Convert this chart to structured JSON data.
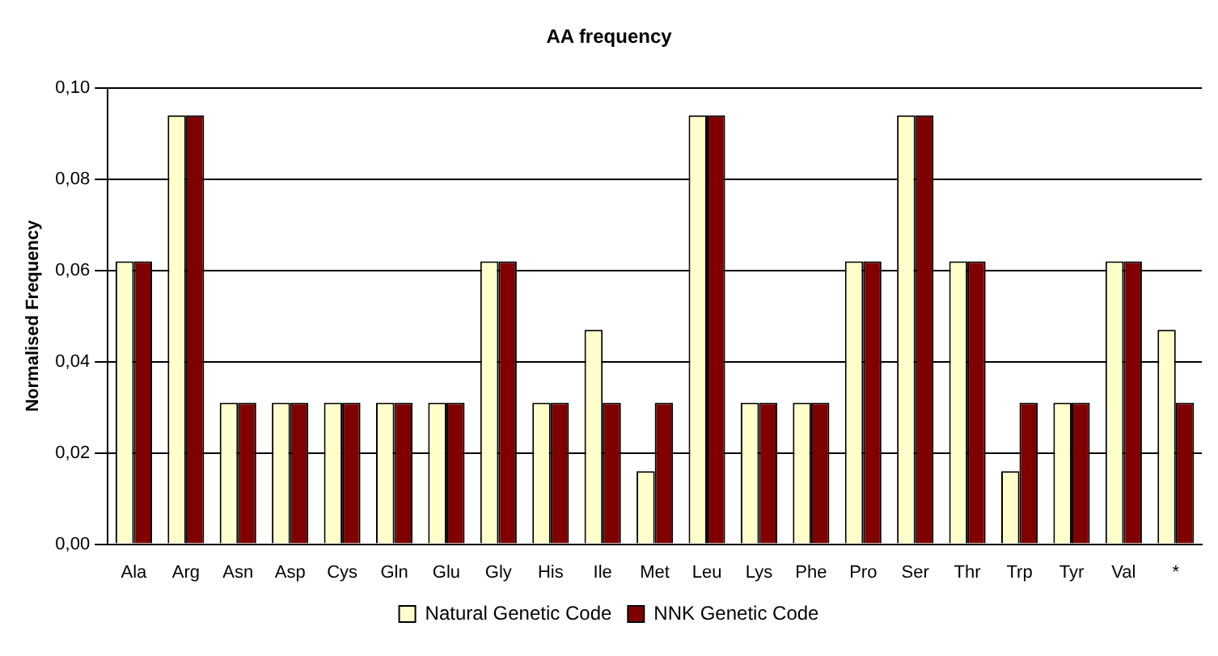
{
  "chart_data": {
    "type": "bar",
    "title": "AA frequency",
    "ylabel": "Normalised Frequency",
    "categories": [
      "Ala",
      "Arg",
      "Asn",
      "Asp",
      "Cys",
      "Gln",
      "Glu",
      "Gly",
      "His",
      "Ile",
      "Met",
      "Leu",
      "Lys",
      "Phe",
      "Pro",
      "Ser",
      "Thr",
      "Trp",
      "Tyr",
      "Val",
      "*"
    ],
    "series": [
      {
        "name": "Natural Genetic Code",
        "color": "#ffffcc",
        "values": [
          0.062,
          0.094,
          0.031,
          0.031,
          0.031,
          0.031,
          0.031,
          0.062,
          0.031,
          0.047,
          0.016,
          0.094,
          0.031,
          0.031,
          0.062,
          0.094,
          0.062,
          0.016,
          0.031,
          0.062,
          0.047
        ]
      },
      {
        "name": "NNK Genetic Code",
        "color": "#800000",
        "values": [
          0.062,
          0.094,
          0.031,
          0.031,
          0.031,
          0.031,
          0.031,
          0.062,
          0.031,
          0.031,
          0.031,
          0.094,
          0.031,
          0.031,
          0.062,
          0.094,
          0.062,
          0.031,
          0.031,
          0.062,
          0.031
        ]
      }
    ],
    "ylim": [
      0,
      0.1
    ],
    "yticks": [
      {
        "value": 0,
        "label": "0,00"
      },
      {
        "value": 0.02,
        "label": "0,02"
      },
      {
        "value": 0.04,
        "label": "0,04"
      },
      {
        "value": 0.06,
        "label": "0,06"
      },
      {
        "value": 0.08,
        "label": "0,08"
      },
      {
        "value": 0.1,
        "label": "0,10"
      }
    ],
    "grid": "y",
    "legend": "bottom"
  }
}
